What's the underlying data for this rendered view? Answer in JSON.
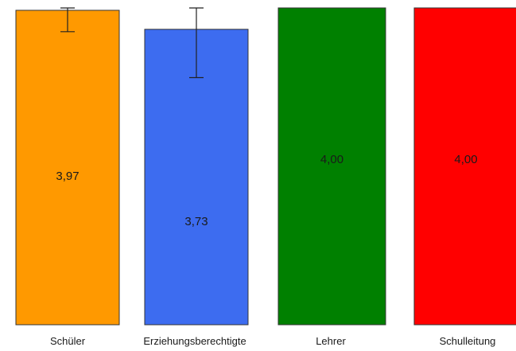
{
  "chart_data": {
    "type": "bar",
    "title": "",
    "xlabel": "",
    "ylabel": "",
    "ylim": [
      0,
      4.1
    ],
    "grid": false,
    "categories": [
      "Schüler",
      "Erziehungsberechtigte",
      "Lehrer",
      "Schulleitung"
    ],
    "values": [
      3.97,
      3.73,
      4.0,
      4.0
    ],
    "value_labels": [
      "3,97",
      "3,73",
      "4,00",
      "4,00"
    ],
    "error_bars": [
      {
        "low": 3.7,
        "high": 4.1
      },
      {
        "low": 3.12,
        "high": 4.03
      },
      null,
      null
    ],
    "colors": [
      "#ff9900",
      "#3d6cf0",
      "#008000",
      "#ff0000"
    ]
  }
}
